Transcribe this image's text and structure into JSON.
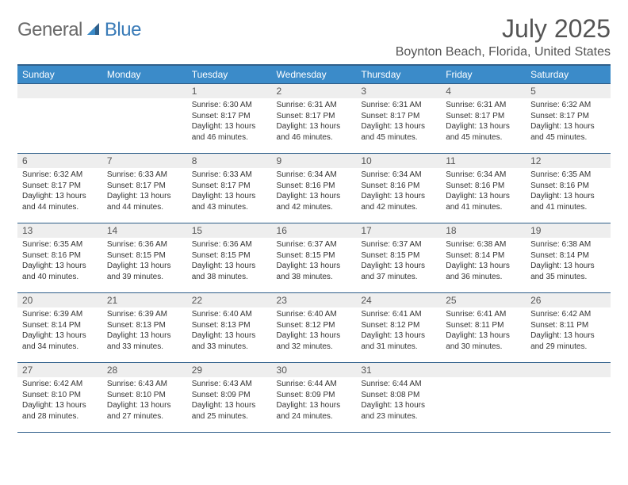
{
  "logo": {
    "part1": "General",
    "part2": "Blue"
  },
  "title": "July 2025",
  "location": "Boynton Beach, Florida, United States",
  "colors": {
    "header_bg": "#3b8bc9",
    "header_border": "#2f5f8a",
    "daynum_bg": "#eeeeee",
    "text": "#333333",
    "title_text": "#545454",
    "logo_gray": "#6a6a6a",
    "logo_blue": "#3b7cb8",
    "page_bg": "#ffffff"
  },
  "typography": {
    "month_title_fontsize": 32,
    "location_fontsize": 16,
    "header_fontsize": 12,
    "daynum_fontsize": 12,
    "body_fontsize": 10
  },
  "day_headers": [
    "Sunday",
    "Monday",
    "Tuesday",
    "Wednesday",
    "Thursday",
    "Friday",
    "Saturday"
  ],
  "weeks": [
    [
      {
        "n": "",
        "sunrise": "",
        "sunset": "",
        "daylight": ""
      },
      {
        "n": "",
        "sunrise": "",
        "sunset": "",
        "daylight": ""
      },
      {
        "n": "1",
        "sunrise": "Sunrise: 6:30 AM",
        "sunset": "Sunset: 8:17 PM",
        "daylight": "Daylight: 13 hours and 46 minutes."
      },
      {
        "n": "2",
        "sunrise": "Sunrise: 6:31 AM",
        "sunset": "Sunset: 8:17 PM",
        "daylight": "Daylight: 13 hours and 46 minutes."
      },
      {
        "n": "3",
        "sunrise": "Sunrise: 6:31 AM",
        "sunset": "Sunset: 8:17 PM",
        "daylight": "Daylight: 13 hours and 45 minutes."
      },
      {
        "n": "4",
        "sunrise": "Sunrise: 6:31 AM",
        "sunset": "Sunset: 8:17 PM",
        "daylight": "Daylight: 13 hours and 45 minutes."
      },
      {
        "n": "5",
        "sunrise": "Sunrise: 6:32 AM",
        "sunset": "Sunset: 8:17 PM",
        "daylight": "Daylight: 13 hours and 45 minutes."
      }
    ],
    [
      {
        "n": "6",
        "sunrise": "Sunrise: 6:32 AM",
        "sunset": "Sunset: 8:17 PM",
        "daylight": "Daylight: 13 hours and 44 minutes."
      },
      {
        "n": "7",
        "sunrise": "Sunrise: 6:33 AM",
        "sunset": "Sunset: 8:17 PM",
        "daylight": "Daylight: 13 hours and 44 minutes."
      },
      {
        "n": "8",
        "sunrise": "Sunrise: 6:33 AM",
        "sunset": "Sunset: 8:17 PM",
        "daylight": "Daylight: 13 hours and 43 minutes."
      },
      {
        "n": "9",
        "sunrise": "Sunrise: 6:34 AM",
        "sunset": "Sunset: 8:16 PM",
        "daylight": "Daylight: 13 hours and 42 minutes."
      },
      {
        "n": "10",
        "sunrise": "Sunrise: 6:34 AM",
        "sunset": "Sunset: 8:16 PM",
        "daylight": "Daylight: 13 hours and 42 minutes."
      },
      {
        "n": "11",
        "sunrise": "Sunrise: 6:34 AM",
        "sunset": "Sunset: 8:16 PM",
        "daylight": "Daylight: 13 hours and 41 minutes."
      },
      {
        "n": "12",
        "sunrise": "Sunrise: 6:35 AM",
        "sunset": "Sunset: 8:16 PM",
        "daylight": "Daylight: 13 hours and 41 minutes."
      }
    ],
    [
      {
        "n": "13",
        "sunrise": "Sunrise: 6:35 AM",
        "sunset": "Sunset: 8:16 PM",
        "daylight": "Daylight: 13 hours and 40 minutes."
      },
      {
        "n": "14",
        "sunrise": "Sunrise: 6:36 AM",
        "sunset": "Sunset: 8:15 PM",
        "daylight": "Daylight: 13 hours and 39 minutes."
      },
      {
        "n": "15",
        "sunrise": "Sunrise: 6:36 AM",
        "sunset": "Sunset: 8:15 PM",
        "daylight": "Daylight: 13 hours and 38 minutes."
      },
      {
        "n": "16",
        "sunrise": "Sunrise: 6:37 AM",
        "sunset": "Sunset: 8:15 PM",
        "daylight": "Daylight: 13 hours and 38 minutes."
      },
      {
        "n": "17",
        "sunrise": "Sunrise: 6:37 AM",
        "sunset": "Sunset: 8:15 PM",
        "daylight": "Daylight: 13 hours and 37 minutes."
      },
      {
        "n": "18",
        "sunrise": "Sunrise: 6:38 AM",
        "sunset": "Sunset: 8:14 PM",
        "daylight": "Daylight: 13 hours and 36 minutes."
      },
      {
        "n": "19",
        "sunrise": "Sunrise: 6:38 AM",
        "sunset": "Sunset: 8:14 PM",
        "daylight": "Daylight: 13 hours and 35 minutes."
      }
    ],
    [
      {
        "n": "20",
        "sunrise": "Sunrise: 6:39 AM",
        "sunset": "Sunset: 8:14 PM",
        "daylight": "Daylight: 13 hours and 34 minutes."
      },
      {
        "n": "21",
        "sunrise": "Sunrise: 6:39 AM",
        "sunset": "Sunset: 8:13 PM",
        "daylight": "Daylight: 13 hours and 33 minutes."
      },
      {
        "n": "22",
        "sunrise": "Sunrise: 6:40 AM",
        "sunset": "Sunset: 8:13 PM",
        "daylight": "Daylight: 13 hours and 33 minutes."
      },
      {
        "n": "23",
        "sunrise": "Sunrise: 6:40 AM",
        "sunset": "Sunset: 8:12 PM",
        "daylight": "Daylight: 13 hours and 32 minutes."
      },
      {
        "n": "24",
        "sunrise": "Sunrise: 6:41 AM",
        "sunset": "Sunset: 8:12 PM",
        "daylight": "Daylight: 13 hours and 31 minutes."
      },
      {
        "n": "25",
        "sunrise": "Sunrise: 6:41 AM",
        "sunset": "Sunset: 8:11 PM",
        "daylight": "Daylight: 13 hours and 30 minutes."
      },
      {
        "n": "26",
        "sunrise": "Sunrise: 6:42 AM",
        "sunset": "Sunset: 8:11 PM",
        "daylight": "Daylight: 13 hours and 29 minutes."
      }
    ],
    [
      {
        "n": "27",
        "sunrise": "Sunrise: 6:42 AM",
        "sunset": "Sunset: 8:10 PM",
        "daylight": "Daylight: 13 hours and 28 minutes."
      },
      {
        "n": "28",
        "sunrise": "Sunrise: 6:43 AM",
        "sunset": "Sunset: 8:10 PM",
        "daylight": "Daylight: 13 hours and 27 minutes."
      },
      {
        "n": "29",
        "sunrise": "Sunrise: 6:43 AM",
        "sunset": "Sunset: 8:09 PM",
        "daylight": "Daylight: 13 hours and 25 minutes."
      },
      {
        "n": "30",
        "sunrise": "Sunrise: 6:44 AM",
        "sunset": "Sunset: 8:09 PM",
        "daylight": "Daylight: 13 hours and 24 minutes."
      },
      {
        "n": "31",
        "sunrise": "Sunrise: 6:44 AM",
        "sunset": "Sunset: 8:08 PM",
        "daylight": "Daylight: 13 hours and 23 minutes."
      },
      {
        "n": "",
        "sunrise": "",
        "sunset": "",
        "daylight": ""
      },
      {
        "n": "",
        "sunrise": "",
        "sunset": "",
        "daylight": ""
      }
    ]
  ]
}
